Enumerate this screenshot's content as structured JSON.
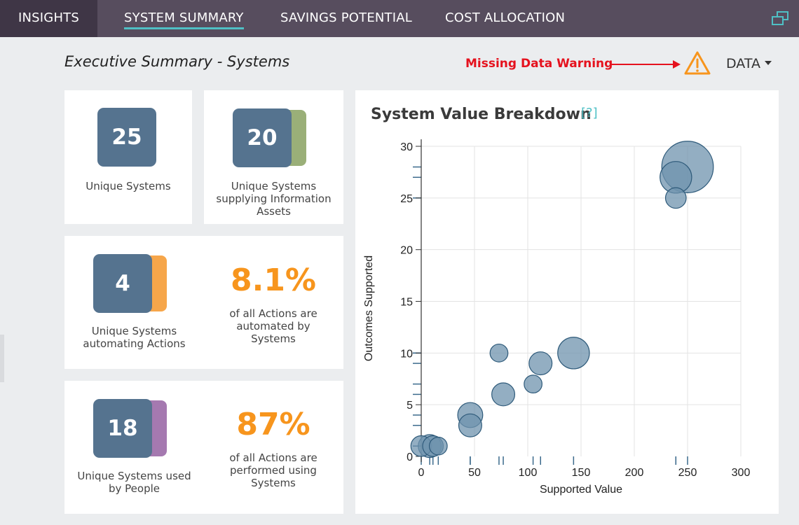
{
  "nav": {
    "tabs": [
      "INSIGHTS",
      "SYSTEM SUMMARY",
      "SAVINGS POTENTIAL",
      "COST ALLOCATION"
    ],
    "active": "SYSTEM SUMMARY"
  },
  "header": {
    "title": "Executive Summary - Systems",
    "warning": "Missing Data Warning",
    "data_dropdown": "DATA"
  },
  "cards": {
    "unique_systems": {
      "value": "25",
      "caption": "Unique Systems"
    },
    "info_assets": {
      "value": "20",
      "caption": "Unique Systems supplying Information Assets"
    },
    "automating": {
      "value": "4",
      "caption": "Unique Systems automating Actions",
      "pct": "8.1%",
      "pct_caption": "of all Actions are automated by Systems"
    },
    "people": {
      "value": "18",
      "caption": "Unique Systems used by People",
      "pct": "87%",
      "pct_caption": "of all Actions are performed using Systems"
    }
  },
  "colors": {
    "topbar": "#574d5e",
    "active_tab_bg": "#3f3646",
    "active_underline": "#4fc0c5",
    "square": "#55738f",
    "green_tab": "#9aaf78",
    "orange_tab": "#f6a64a",
    "purple_tab": "#a579b0",
    "pct_orange": "#f7951d",
    "warning_red": "#e5121e",
    "bubble_fill": "#6f93ad",
    "bubble_stroke": "#2e5a7a"
  },
  "icons": {
    "popout": "popout-window-icon",
    "warning": "warning-triangle-icon",
    "arrow": "arrow-right-icon",
    "caret": "caret-down-icon"
  },
  "chart": {
    "title": "System Value Breakdown",
    "help": "[?]"
  },
  "chart_data": {
    "type": "scatter",
    "title": "System Value Breakdown",
    "xlabel": "Supported Value",
    "ylabel": "Outcomes Supported",
    "xlim": [
      0,
      300
    ],
    "ylim": [
      0,
      30
    ],
    "xticks": [
      0,
      50,
      100,
      150,
      200,
      250,
      300
    ],
    "yticks": [
      0,
      5,
      10,
      15,
      20,
      25,
      30
    ],
    "grid": true,
    "rug": true,
    "points": [
      {
        "x": 0,
        "y": 1,
        "size": 3
      },
      {
        "x": 8,
        "y": 1,
        "size": 4
      },
      {
        "x": 11,
        "y": 1,
        "size": 3
      },
      {
        "x": 16,
        "y": 1,
        "size": 2
      },
      {
        "x": 46,
        "y": 3,
        "size": 4
      },
      {
        "x": 46,
        "y": 4,
        "size": 5
      },
      {
        "x": 73,
        "y": 10,
        "size": 2
      },
      {
        "x": 77,
        "y": 6,
        "size": 4
      },
      {
        "x": 105,
        "y": 7,
        "size": 2
      },
      {
        "x": 112,
        "y": 9,
        "size": 4
      },
      {
        "x": 143,
        "y": 10,
        "size": 9
      },
      {
        "x": 239,
        "y": 25,
        "size": 3
      },
      {
        "x": 239,
        "y": 27,
        "size": 9
      },
      {
        "x": 250,
        "y": 28,
        "size": 28
      }
    ]
  }
}
